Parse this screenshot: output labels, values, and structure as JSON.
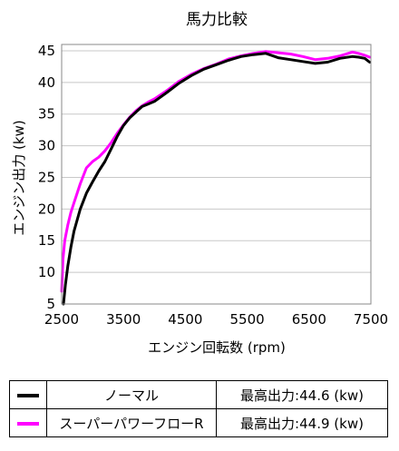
{
  "chart_data": {
    "type": "line",
    "title": "馬力比較",
    "xlabel": "エンジン回転数 (rpm)",
    "ylabel": "エンジン出力 (kw)",
    "xlim": [
      2500,
      7500
    ],
    "ylim": [
      5,
      46
    ],
    "xticks": [
      "2500",
      "3500",
      "4500",
      "5500",
      "6500",
      "7500"
    ],
    "yticks": [
      "5",
      "10",
      "15",
      "20",
      "25",
      "30",
      "35",
      "40",
      "45"
    ],
    "grid": "horizontal",
    "legend_placement": "bottom-table",
    "series": [
      {
        "name": "ノーマル",
        "color": "#000000",
        "peak_label": "最高出力:",
        "peak_value": "44.6 (kw)",
        "x": [
          2530,
          2560,
          2600,
          2650,
          2700,
          2800,
          2900,
          3000,
          3100,
          3200,
          3300,
          3400,
          3500,
          3600,
          3700,
          3800,
          3900,
          4000,
          4200,
          4400,
          4600,
          4800,
          5000,
          5200,
          5400,
          5600,
          5800,
          6000,
          6200,
          6400,
          6600,
          6800,
          7000,
          7200,
          7300,
          7400,
          7480
        ],
        "y": [
          5,
          8,
          11,
          14,
          16.5,
          20,
          22.5,
          24.3,
          26,
          27.5,
          29.5,
          31.5,
          33.2,
          34.4,
          35.3,
          36.2,
          36.6,
          37.0,
          38.4,
          39.9,
          41.1,
          42.1,
          42.8,
          43.5,
          44.1,
          44.4,
          44.6,
          43.9,
          43.6,
          43.3,
          43.0,
          43.2,
          43.8,
          44.1,
          44.0,
          43.8,
          43.2
        ]
      },
      {
        "name": "スーパーパワーフローR",
        "color": "#ff00ff",
        "peak_label": "最高出力:",
        "peak_value": "44.9 (kw)",
        "x": [
          2500,
          2520,
          2550,
          2600,
          2650,
          2700,
          2800,
          2900,
          3000,
          3100,
          3200,
          3300,
          3400,
          3500,
          3600,
          3700,
          3800,
          3900,
          4000,
          4200,
          4400,
          4600,
          4800,
          5000,
          5200,
          5400,
          5600,
          5800,
          6000,
          6200,
          6400,
          6600,
          6800,
          7000,
          7200,
          7300,
          7400,
          7480
        ],
        "y": [
          7,
          12,
          15,
          17.5,
          19.5,
          21,
          24,
          26.5,
          27.5,
          28.2,
          29.2,
          30.5,
          32.0,
          33.3,
          34.5,
          35.5,
          36.3,
          36.9,
          37.4,
          38.7,
          40.2,
          41.3,
          42.2,
          42.9,
          43.7,
          44.2,
          44.6,
          44.9,
          44.7,
          44.5,
          44.1,
          43.6,
          43.8,
          44.2,
          44.8,
          44.6,
          44.3,
          44.0
        ]
      }
    ]
  }
}
